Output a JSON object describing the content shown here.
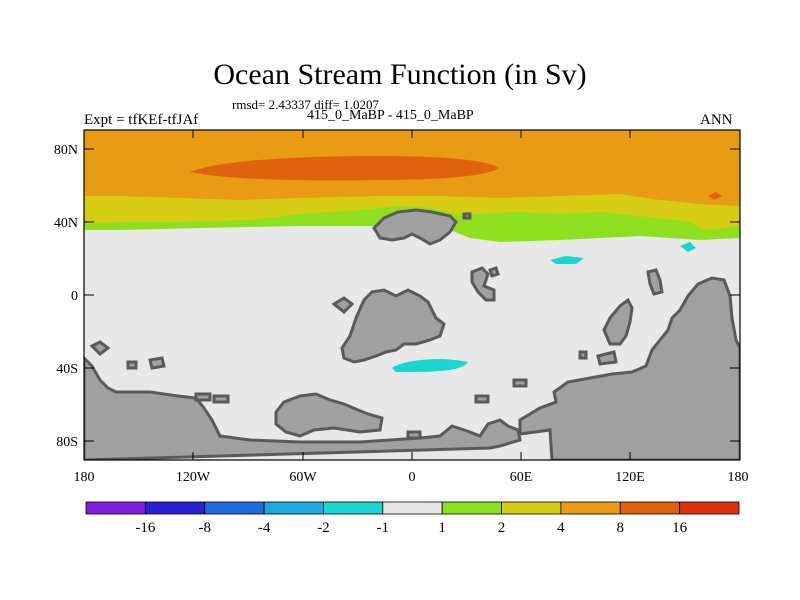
{
  "title": "Ocean Stream Function (in Sv)",
  "stats": "rmsd= 2.43337 diff= 1.0207",
  "experiment": "Expt = tfKEf-tfJAf",
  "subtitle": "415_0_MaBP - 415_0_MaBP",
  "season": "ANN",
  "y_ticks": [
    "80N",
    "40N",
    "0",
    "40S",
    "80S"
  ],
  "x_ticks": [
    "180",
    "120W",
    "60W",
    "0",
    "60E",
    "120E",
    "180"
  ],
  "colorbar": {
    "labels": [
      "-16",
      "-8",
      "-4",
      "-2",
      "-1",
      "1",
      "2",
      "4",
      "8",
      "16"
    ],
    "colors": [
      "#7f1fe0",
      "#2b1fd6",
      "#1f6be0",
      "#1fa8e0",
      "#19d6d0",
      "#e8e8e8",
      "#8ee01f",
      "#d6cc14",
      "#e89c14",
      "#e0620f",
      "#e0300f"
    ]
  },
  "palette": {
    "land": "#a0a0a0",
    "coast": "#5a5a5a",
    "ocean_neutral": "#e8e8e8",
    "band_green": "#8ee01f",
    "band_yellow": "#d6cc14",
    "band_orange": "#e89c14",
    "band_dark_orange": "#e0620f",
    "cyan": "#19d6d0"
  }
}
